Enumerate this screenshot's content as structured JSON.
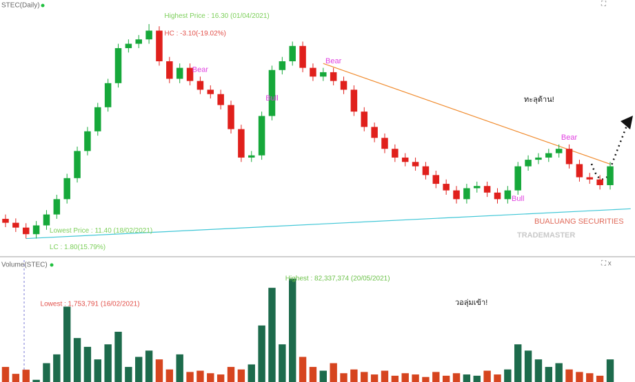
{
  "chart_data": [
    {
      "type": "candlestick",
      "title": "STEC(Daily)",
      "open": [
        11.85,
        11.76,
        11.65,
        11.5,
        11.7,
        11.95,
        12.3,
        12.78,
        13.4,
        13.85,
        14.4,
        14.95,
        15.75,
        15.85,
        15.95,
        16.15,
        15.45,
        15.05,
        15.3,
        15.0,
        14.8,
        14.7,
        14.45,
        13.9,
        13.25,
        13.3,
        14.2,
        15.25,
        15.45,
        15.8,
        15.3,
        15.1,
        15.2,
        15.0,
        14.8,
        14.3,
        13.95,
        13.7,
        13.45,
        13.25,
        13.15,
        13.05,
        12.85,
        12.65,
        12.5,
        12.3,
        12.55,
        12.6,
        12.45,
        12.3,
        12.5,
        13.05,
        13.2,
        13.25,
        13.35,
        13.45,
        13.1,
        12.8,
        12.75,
        12.62
      ],
      "high": [
        11.95,
        11.86,
        11.75,
        11.8,
        12.05,
        12.4,
        12.88,
        13.5,
        13.95,
        14.5,
        15.05,
        15.85,
        15.95,
        16.05,
        16.3,
        16.25,
        15.55,
        15.4,
        15.4,
        15.1,
        14.9,
        14.8,
        14.55,
        14.0,
        13.4,
        14.3,
        15.35,
        15.55,
        15.9,
        15.9,
        15.4,
        15.3,
        15.3,
        15.1,
        14.9,
        14.4,
        14.05,
        13.8,
        13.55,
        13.35,
        13.25,
        13.15,
        12.95,
        12.75,
        12.6,
        12.65,
        12.7,
        12.7,
        12.55,
        12.6,
        13.15,
        13.3,
        13.35,
        13.45,
        13.55,
        13.55,
        13.2,
        12.9,
        12.85,
        13.15
      ],
      "low": [
        11.66,
        11.55,
        11.4,
        11.4,
        11.6,
        11.85,
        12.2,
        12.68,
        13.3,
        13.75,
        14.3,
        14.85,
        15.65,
        15.75,
        15.85,
        15.35,
        14.95,
        14.95,
        14.9,
        14.7,
        14.6,
        14.35,
        13.8,
        13.15,
        13.15,
        13.2,
        14.1,
        15.15,
        15.35,
        15.2,
        15.0,
        15.0,
        14.9,
        14.7,
        14.2,
        13.85,
        13.6,
        13.35,
        13.15,
        13.05,
        12.95,
        12.75,
        12.55,
        12.4,
        12.2,
        12.2,
        12.45,
        12.35,
        12.2,
        12.2,
        12.4,
        12.95,
        13.1,
        13.15,
        13.25,
        13.0,
        12.7,
        12.65,
        12.52,
        12.52
      ],
      "close": [
        11.76,
        11.65,
        11.5,
        11.7,
        11.95,
        12.3,
        12.78,
        13.4,
        13.85,
        14.4,
        14.95,
        15.75,
        15.85,
        15.95,
        16.15,
        15.45,
        15.05,
        15.3,
        15.0,
        14.8,
        14.7,
        14.45,
        13.9,
        13.25,
        13.3,
        14.2,
        15.25,
        15.45,
        15.8,
        15.3,
        15.1,
        15.2,
        15.0,
        14.8,
        14.3,
        13.95,
        13.7,
        13.45,
        13.25,
        13.15,
        13.05,
        12.85,
        12.65,
        12.5,
        12.3,
        12.55,
        12.6,
        12.45,
        12.3,
        12.5,
        13.05,
        13.2,
        13.25,
        13.35,
        13.45,
        13.1,
        12.8,
        12.75,
        12.62,
        13.05
      ],
      "up_color": "#16a83a",
      "down_color": "#e0201c",
      "ylim": [
        11.0,
        16.85
      ],
      "annotations": [
        {
          "text": "Highest Price : 16.30 (01/04/2021)",
          "color": "#7ccf5a",
          "index": 15.5,
          "price": 16.48
        },
        {
          "text": "HC : -3.10(-19.02%)",
          "color": "#e2504a",
          "index": 15.5,
          "price": 16.08
        },
        {
          "text": "Lowest Price : 11.40 (18/02/2021)",
          "color": "#7ccf5a",
          "index": 4.3,
          "price": 11.58
        },
        {
          "text": "LC : 1.80(15.79%)",
          "color": "#7ccf5a",
          "index": 4.3,
          "price": 11.2
        }
      ],
      "signals": [
        {
          "text": "Bear",
          "index": 19,
          "price": 15.25
        },
        {
          "text": "Bear",
          "index": 32,
          "price": 15.45
        },
        {
          "text": "Bear",
          "index": 55,
          "price": 13.7
        },
        {
          "text": "Bull",
          "index": 26,
          "price": 14.6
        },
        {
          "text": "Bull",
          "index": 50,
          "price": 12.3
        }
      ],
      "trendlines": [
        {
          "color": "#f08a2c",
          "from": [
            31,
            15.4
          ],
          "to": [
            59,
            13.1
          ]
        },
        {
          "color": "#3ec6d6",
          "from": [
            2,
            11.4
          ],
          "to": [
            61,
            12.08
          ]
        }
      ],
      "callout": "ทะลุต้าน!",
      "logo": {
        "top": "BUALUANG SECURITIES",
        "name": "TRADEMASTER"
      }
    },
    {
      "type": "volume",
      "title": "Volume(STEC)",
      "values": [
        12000000,
        6500000,
        9800000,
        1753791,
        15000000,
        22000000,
        60000000,
        35000000,
        28000000,
        18000000,
        30000000,
        40000000,
        12000000,
        20000000,
        25000000,
        18000000,
        10000000,
        22000000,
        8000000,
        9000000,
        7000000,
        6000000,
        12000000,
        10000000,
        14000000,
        45000000,
        75000000,
        30000000,
        82337374,
        20000000,
        12000000,
        9000000,
        15000000,
        7000000,
        10000000,
        8000000,
        6000000,
        9000000,
        5000000,
        7000000,
        6000000,
        4000000,
        8000000,
        5000000,
        7000000,
        6000000,
        5000000,
        9000000,
        6000000,
        10000000,
        30000000,
        25000000,
        18000000,
        12000000,
        15000000,
        10000000,
        8000000,
        7000000,
        5000000,
        18000000
      ],
      "up_color": "#1d6b4c",
      "down_color": "#d6451f",
      "ylim": [
        0,
        97000000
      ],
      "annotations": [
        {
          "text": "Highest : 82,337,374 (20/05/2021)",
          "color": "#6cc24a",
          "index": 27.3,
          "value": 82337374
        },
        {
          "text": "Lowest : 1,753,791 (16/02/2021)",
          "color": "#e2504a",
          "index": 3.4,
          "value": 62000000
        }
      ],
      "callout": "วอลุ่มเข้า!"
    }
  ]
}
